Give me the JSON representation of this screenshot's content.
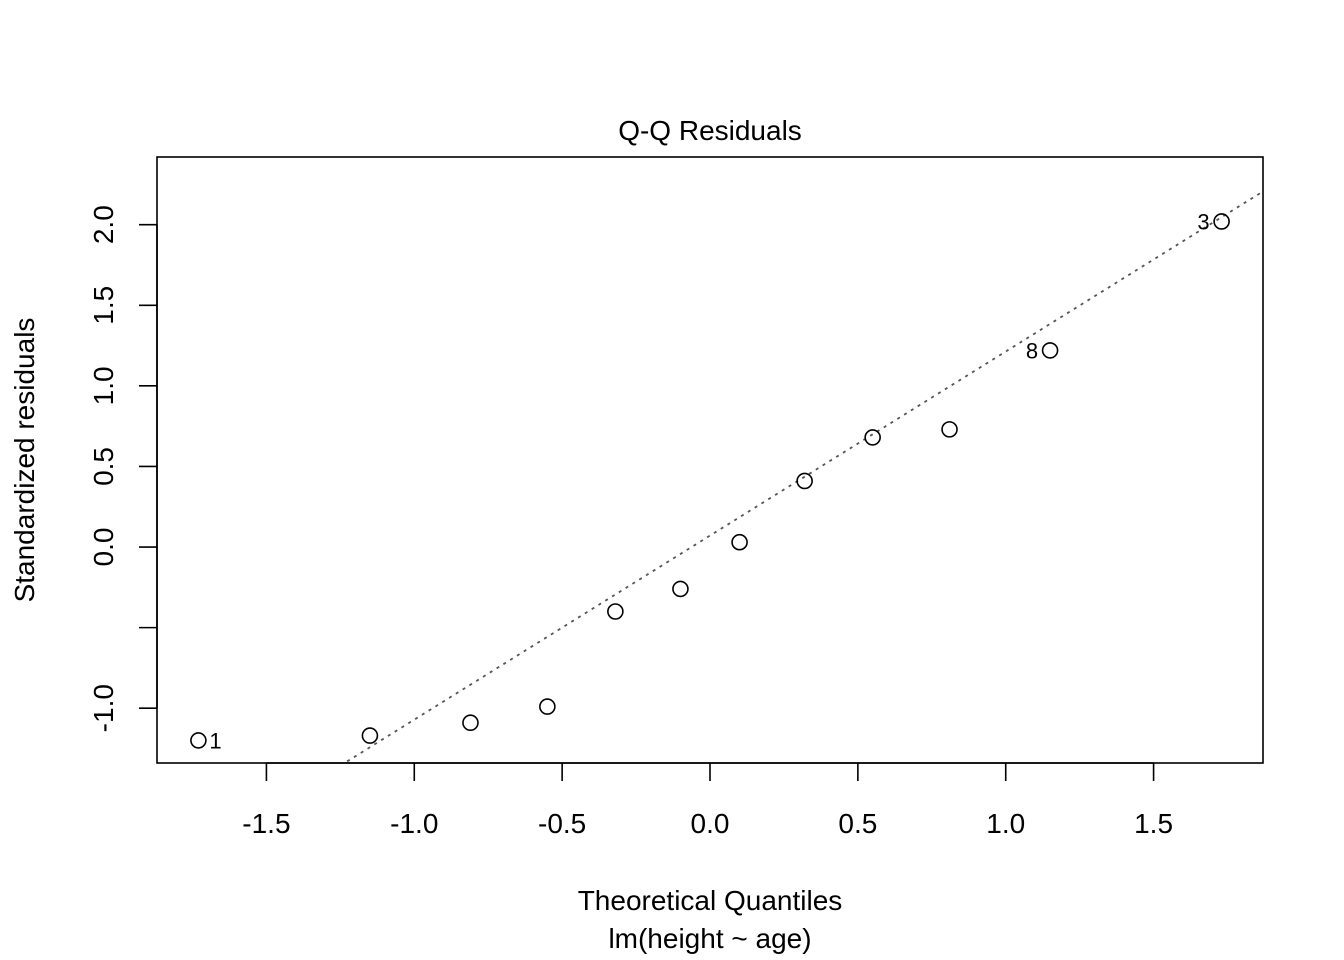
{
  "chart_data": {
    "type": "scatter",
    "title": "Q-Q Residuals",
    "xlabel": "Theoretical Quantiles",
    "subtitle": "lm(height ~ age)",
    "ylabel": "Standardized residuals",
    "xlim": [
      -1.87,
      1.87
    ],
    "ylim": [
      -1.34,
      2.42
    ],
    "grid": false,
    "x_ticks": [
      -1.5,
      -1.0,
      -0.5,
      0.0,
      0.5,
      1.0,
      1.5
    ],
    "x_tick_labels": [
      "-1.5",
      "-1.0",
      "-0.5",
      "0.0",
      "0.5",
      "1.0",
      "1.5"
    ],
    "y_ticks": [
      -1.0,
      -0.5,
      0.0,
      0.5,
      1.0,
      1.5,
      2.0
    ],
    "y_tick_labels": [
      "-1.0",
      "",
      "0.0",
      "0.5",
      "1.0",
      "1.5",
      "2.0"
    ],
    "points": [
      {
        "x": -1.73,
        "y": -1.2,
        "label": "1"
      },
      {
        "x": -1.15,
        "y": -1.17,
        "label": ""
      },
      {
        "x": -0.81,
        "y": -1.09,
        "label": ""
      },
      {
        "x": -0.55,
        "y": -0.99,
        "label": ""
      },
      {
        "x": -0.32,
        "y": -0.4,
        "label": ""
      },
      {
        "x": -0.1,
        "y": -0.26,
        "label": ""
      },
      {
        "x": 0.1,
        "y": 0.03,
        "label": ""
      },
      {
        "x": 0.32,
        "y": 0.41,
        "label": ""
      },
      {
        "x": 0.55,
        "y": 0.68,
        "label": ""
      },
      {
        "x": 0.81,
        "y": 0.73,
        "label": ""
      },
      {
        "x": 1.15,
        "y": 1.22,
        "label": "8"
      },
      {
        "x": 1.73,
        "y": 2.02,
        "label": "3"
      }
    ],
    "reference_line": {
      "intercept": 0.071,
      "slope": 1.142,
      "style": "dotted"
    }
  }
}
